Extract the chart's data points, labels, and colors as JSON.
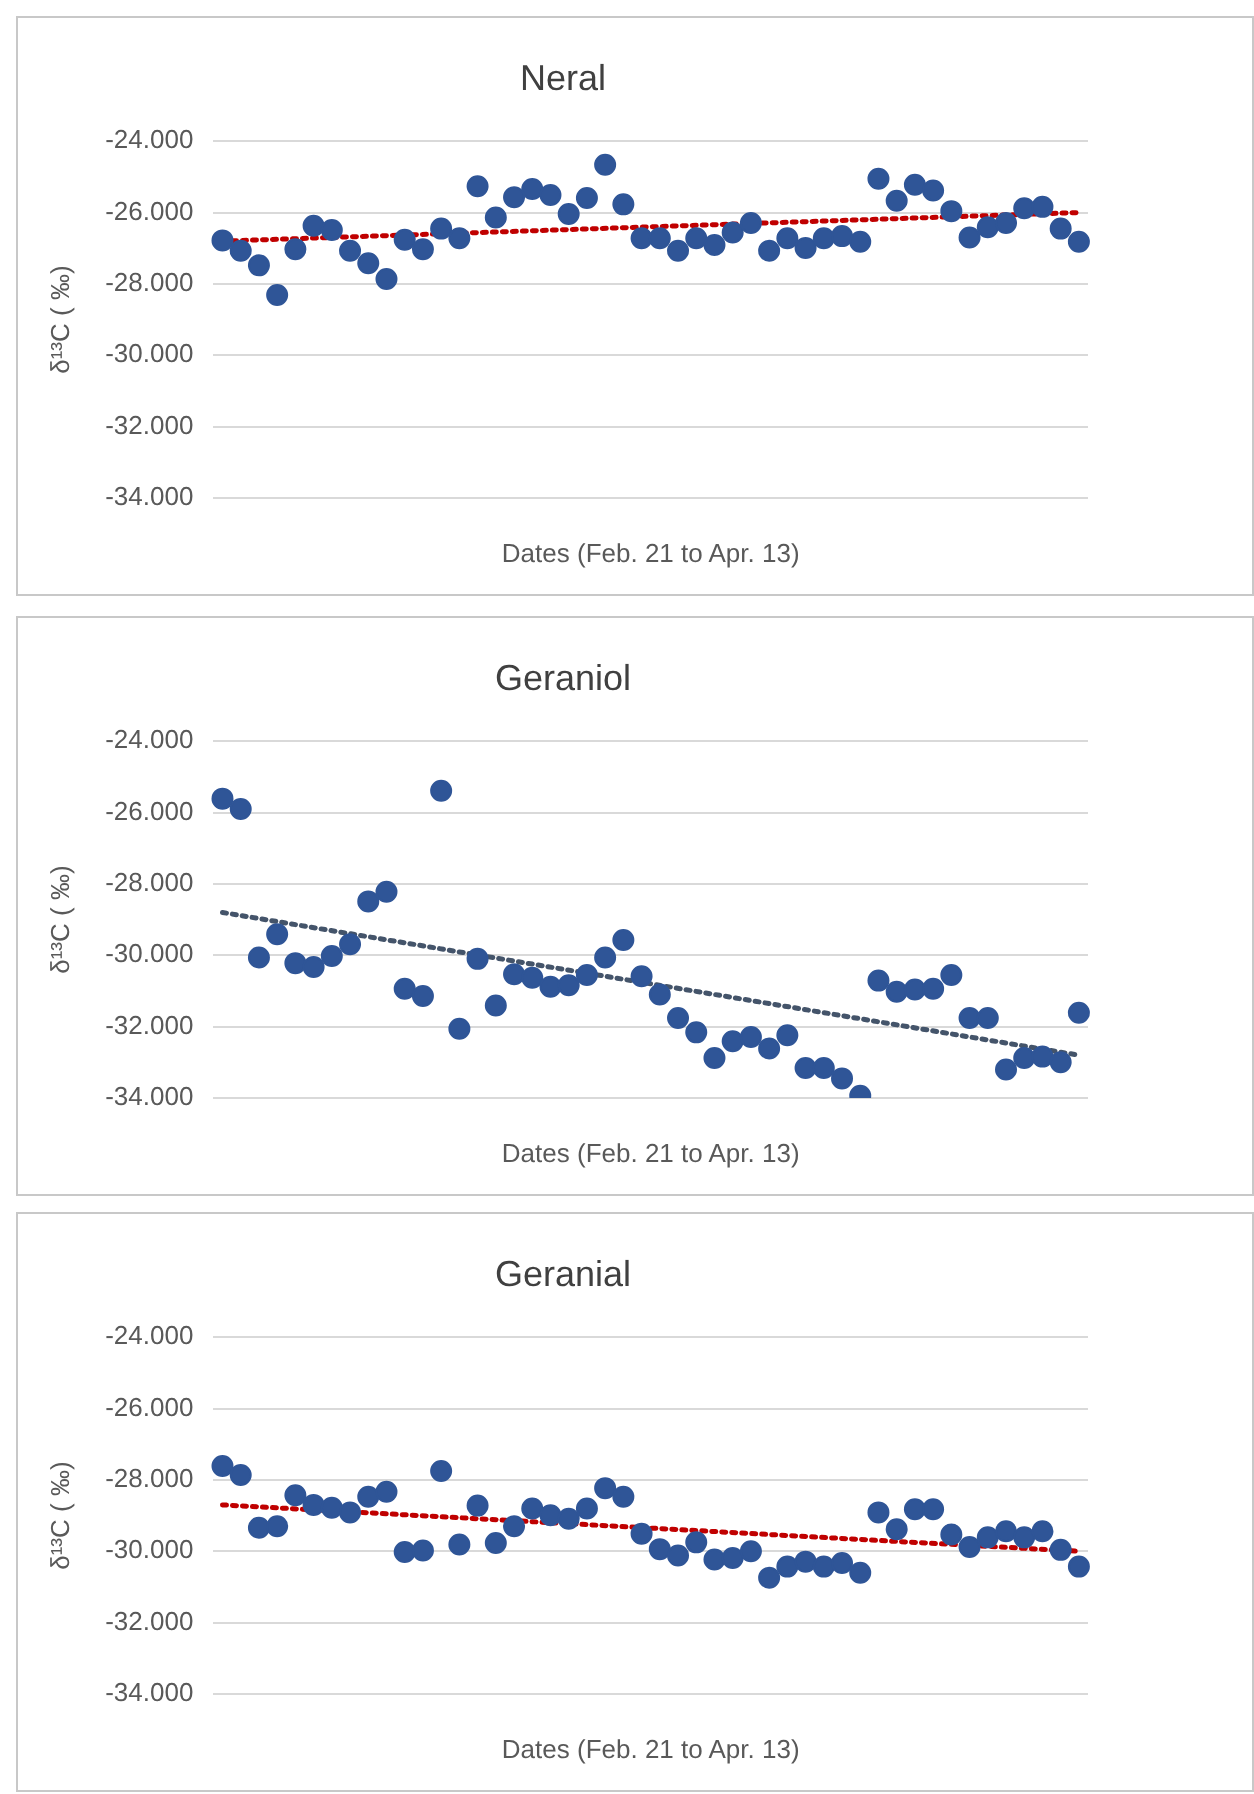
{
  "chart_data": [
    {
      "type": "scatter",
      "title": "Neral",
      "xlabel": "Dates (Feb. 21 to Apr. 13)",
      "ylabel": "δ¹³C ( ‰)",
      "categories": [
        null,
        null,
        null,
        null,
        null,
        null,
        null,
        null,
        null,
        null,
        null,
        null,
        null,
        null,
        null,
        null,
        null,
        null,
        null,
        null,
        null,
        null,
        null,
        null,
        null,
        null,
        null,
        null,
        null,
        null,
        null,
        null,
        null,
        null,
        null,
        null,
        null,
        null,
        null,
        null,
        null,
        null,
        null,
        null,
        null,
        null,
        null,
        null
      ],
      "ylim": [
        -34,
        -24
      ],
      "yticks": [
        {
          "value": -24,
          "label": "-24.000"
        },
        {
          "value": -26,
          "label": "-26.000"
        },
        {
          "value": -28,
          "label": "-28.000"
        },
        {
          "value": -30,
          "label": "-30.000"
        },
        {
          "value": -32,
          "label": "-32.000"
        },
        {
          "value": -34,
          "label": "-34.000"
        }
      ],
      "grid": "y",
      "marker": "circle",
      "series": [
        {
          "type": "scatter",
          "color": "#2f5597",
          "values": [
            -26.78,
            -27.07,
            -27.48,
            -28.31,
            -27.03,
            -26.37,
            -26.49,
            -27.07,
            -27.42,
            -27.86,
            -26.76,
            -27.03,
            -26.45,
            -26.72,
            -25.26,
            -26.14,
            -25.57,
            -25.34,
            -25.51,
            -26.04,
            -25.59,
            -24.66,
            -25.77,
            -26.72,
            -26.72,
            -27.07,
            -26.72,
            -26.91,
            -26.56,
            -26.29,
            -27.07,
            -26.72,
            -26.99,
            -26.72,
            -26.66,
            -26.82,
            -25.05,
            -25.67,
            -25.22,
            -25.38,
            -25.96,
            -26.7,
            -26.41,
            -26.29,
            -25.88,
            -25.84,
            -26.45,
            -26.82
          ]
        },
        {
          "type": "line",
          "color": "#c00000",
          "line_style": "dotted",
          "marker": "none",
          "values": [
            -26.8,
            null,
            null,
            null,
            null,
            null,
            null,
            null,
            null,
            null,
            null,
            null,
            null,
            null,
            null,
            null,
            null,
            null,
            null,
            null,
            null,
            null,
            null,
            null,
            null,
            null,
            null,
            null,
            null,
            null,
            null,
            null,
            null,
            null,
            null,
            null,
            null,
            null,
            null,
            null,
            null,
            null,
            null,
            null,
            null,
            null,
            null,
            -26.0
          ]
        }
      ]
    },
    {
      "type": "scatter",
      "title": "Geraniol",
      "xlabel": "Dates (Feb. 21 to Apr. 13)",
      "ylabel": "δ¹³C ( ‰)",
      "categories": [
        null,
        null,
        null,
        null,
        null,
        null,
        null,
        null,
        null,
        null,
        null,
        null,
        null,
        null,
        null,
        null,
        null,
        null,
        null,
        null,
        null,
        null,
        null,
        null,
        null,
        null,
        null,
        null,
        null,
        null,
        null,
        null,
        null,
        null,
        null,
        null,
        null,
        null,
        null,
        null,
        null,
        null,
        null,
        null,
        null,
        null,
        null,
        null
      ],
      "ylim": [
        -34,
        -24
      ],
      "yticks": [
        {
          "value": -24,
          "label": "-24.000"
        },
        {
          "value": -26,
          "label": "-26.000"
        },
        {
          "value": -28,
          "label": "-28.000"
        },
        {
          "value": -30,
          "label": "-30.000"
        },
        {
          "value": -32,
          "label": "-32.000"
        },
        {
          "value": -34,
          "label": "-34.000"
        }
      ],
      "grid": "y",
      "marker": "circle",
      "series": [
        {
          "type": "scatter",
          "color": "#2f5597",
          "values": [
            -25.61,
            -25.9,
            -30.06,
            -29.41,
            -30.22,
            -30.33,
            -30.02,
            -29.69,
            -28.49,
            -28.22,
            -30.94,
            -31.14,
            -25.39,
            -32.06,
            -30.1,
            -31.41,
            -30.53,
            -30.63,
            -30.88,
            -30.84,
            -30.55,
            -30.06,
            -29.57,
            -30.59,
            -31.1,
            -31.76,
            -32.16,
            -32.88,
            -32.41,
            -32.29,
            -32.61,
            -32.24,
            -33.16,
            -33.16,
            -33.45,
            -33.94,
            -30.71,
            -31.02,
            -30.96,
            -30.94,
            -30.55,
            -31.76,
            -31.76,
            -33.2,
            -32.88,
            -32.84,
            -33.0,
            -31.61
          ]
        },
        {
          "type": "line",
          "color": "#44546a",
          "line_style": "dotted",
          "marker": "none",
          "values": [
            -28.8,
            null,
            null,
            null,
            null,
            null,
            null,
            null,
            null,
            null,
            null,
            null,
            null,
            null,
            null,
            null,
            null,
            null,
            null,
            null,
            null,
            null,
            null,
            null,
            null,
            null,
            null,
            null,
            null,
            null,
            null,
            null,
            null,
            null,
            null,
            null,
            null,
            null,
            null,
            null,
            null,
            null,
            null,
            null,
            null,
            null,
            null,
            -32.8
          ]
        }
      ]
    },
    {
      "type": "scatter",
      "title": "Geranial",
      "xlabel": "Dates (Feb. 21 to Apr. 13)",
      "ylabel": "δ¹³C ( ‰)",
      "categories": [
        null,
        null,
        null,
        null,
        null,
        null,
        null,
        null,
        null,
        null,
        null,
        null,
        null,
        null,
        null,
        null,
        null,
        null,
        null,
        null,
        null,
        null,
        null,
        null,
        null,
        null,
        null,
        null,
        null,
        null,
        null,
        null,
        null,
        null,
        null,
        null,
        null,
        null,
        null,
        null,
        null,
        null,
        null,
        null,
        null,
        null,
        null,
        null
      ],
      "ylim": [
        -34,
        -24
      ],
      "yticks": [
        {
          "value": -24,
          "label": "-24.000"
        },
        {
          "value": -26,
          "label": "-26.000"
        },
        {
          "value": -28,
          "label": "-28.000"
        },
        {
          "value": -30,
          "label": "-30.000"
        },
        {
          "value": -32,
          "label": "-32.000"
        },
        {
          "value": -34,
          "label": "-34.000"
        }
      ],
      "grid": "y",
      "marker": "circle",
      "series": [
        {
          "type": "scatter",
          "color": "#2f5597",
          "values": [
            -27.61,
            -27.86,
            -29.34,
            -29.3,
            -28.43,
            -28.7,
            -28.78,
            -28.91,
            -28.47,
            -28.33,
            -30.02,
            -29.98,
            -27.75,
            -29.81,
            -28.72,
            -29.77,
            -29.3,
            -28.8,
            -28.99,
            -29.09,
            -28.8,
            -28.23,
            -28.47,
            -29.51,
            -29.94,
            -30.12,
            -29.75,
            -30.23,
            -30.19,
            -30.0,
            -30.74,
            -30.43,
            -30.29,
            -30.43,
            -30.33,
            -30.6,
            -28.91,
            -29.38,
            -28.82,
            -28.82,
            -29.53,
            -29.88,
            -29.61,
            -29.44,
            -29.61,
            -29.44,
            -29.96,
            -30.43
          ]
        },
        {
          "type": "line",
          "color": "#c00000",
          "line_style": "dotted",
          "marker": "none",
          "values": [
            -28.7,
            null,
            null,
            null,
            null,
            null,
            null,
            null,
            null,
            null,
            null,
            null,
            null,
            null,
            null,
            null,
            null,
            null,
            null,
            null,
            null,
            null,
            null,
            null,
            null,
            null,
            null,
            null,
            null,
            null,
            null,
            null,
            null,
            null,
            null,
            null,
            null,
            null,
            null,
            null,
            null,
            null,
            null,
            null,
            null,
            null,
            null,
            -30.0
          ]
        }
      ]
    }
  ]
}
